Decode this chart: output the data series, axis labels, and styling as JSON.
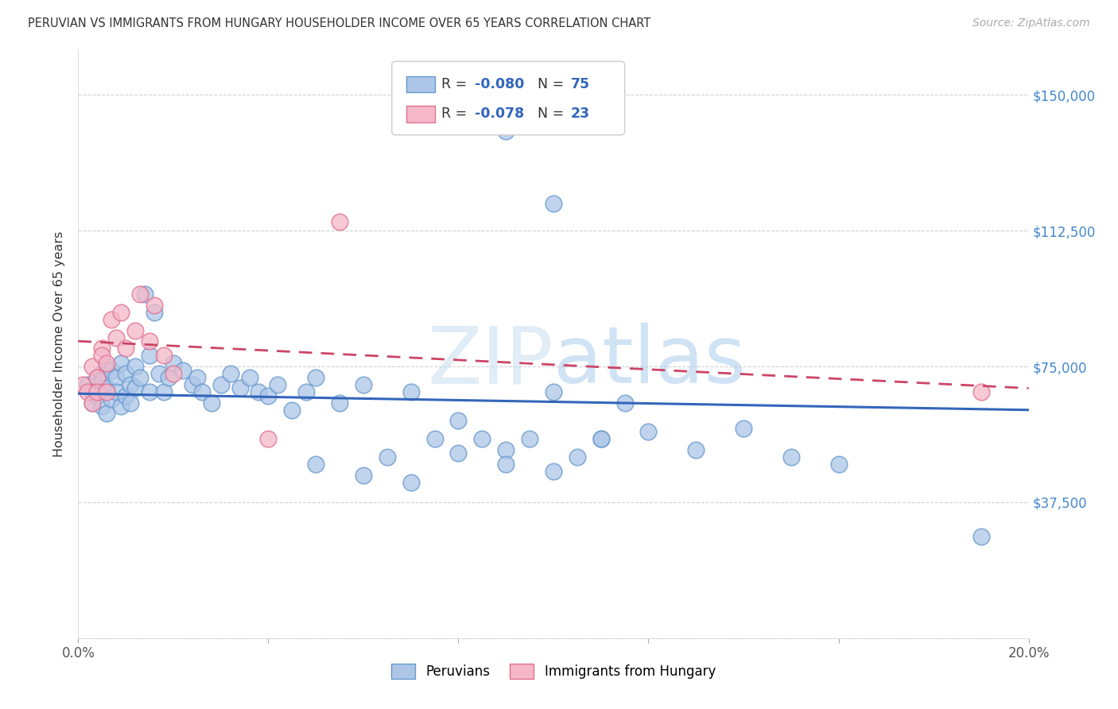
{
  "title": "PERUVIAN VS IMMIGRANTS FROM HUNGARY HOUSEHOLDER INCOME OVER 65 YEARS CORRELATION CHART",
  "source": "Source: ZipAtlas.com",
  "ylabel": "Householder Income Over 65 years",
  "legend_blue_R": "R = -0.080",
  "legend_blue_N": "N = 75",
  "legend_pink_R": "R = -0.078",
  "legend_pink_N": "N = 23",
  "legend_label_blue": "Peruvians",
  "legend_label_pink": "Immigrants from Hungary",
  "blue_scatter_color": "#adc6e8",
  "blue_edge_color": "#6699cc",
  "pink_scatter_color": "#f5b8c8",
  "pink_edge_color": "#e07090",
  "line_blue_color": "#3366bb",
  "line_pink_color": "#cc4466",
  "ytick_color": "#4488cc",
  "watermark": "ZIPatlas",
  "peruvians_x": [
    0.002,
    0.003,
    0.003,
    0.004,
    0.004,
    0.005,
    0.005,
    0.005,
    0.006,
    0.006,
    0.006,
    0.007,
    0.007,
    0.008,
    0.008,
    0.009,
    0.009,
    0.01,
    0.01,
    0.011,
    0.011,
    0.012,
    0.012,
    0.013,
    0.014,
    0.015,
    0.015,
    0.016,
    0.017,
    0.018,
    0.019,
    0.02,
    0.022,
    0.024,
    0.025,
    0.026,
    0.028,
    0.03,
    0.032,
    0.034,
    0.036,
    0.038,
    0.04,
    0.042,
    0.045,
    0.048,
    0.05,
    0.055,
    0.06,
    0.065,
    0.07,
    0.075,
    0.08,
    0.085,
    0.09,
    0.095,
    0.1,
    0.105,
    0.11,
    0.115,
    0.05,
    0.06,
    0.07,
    0.08,
    0.09,
    0.1,
    0.11,
    0.12,
    0.13,
    0.14,
    0.09,
    0.1,
    0.15,
    0.16,
    0.19
  ],
  "peruvians_y": [
    70000,
    68000,
    65000,
    72000,
    67000,
    73000,
    71000,
    64000,
    75000,
    69000,
    62000,
    74000,
    66000,
    72000,
    68000,
    76000,
    64000,
    73000,
    67000,
    70000,
    65000,
    75000,
    69000,
    72000,
    95000,
    78000,
    68000,
    90000,
    73000,
    68000,
    72000,
    76000,
    74000,
    70000,
    72000,
    68000,
    65000,
    70000,
    73000,
    69000,
    72000,
    68000,
    67000,
    70000,
    63000,
    68000,
    72000,
    65000,
    70000,
    50000,
    68000,
    55000,
    60000,
    55000,
    52000,
    55000,
    68000,
    50000,
    55000,
    65000,
    48000,
    45000,
    43000,
    51000,
    48000,
    46000,
    55000,
    57000,
    52000,
    58000,
    140000,
    120000,
    50000,
    48000,
    28000
  ],
  "hungary_x": [
    0.001,
    0.002,
    0.003,
    0.003,
    0.004,
    0.004,
    0.005,
    0.005,
    0.006,
    0.006,
    0.007,
    0.008,
    0.009,
    0.01,
    0.012,
    0.013,
    0.015,
    0.016,
    0.018,
    0.02,
    0.04,
    0.055,
    0.19
  ],
  "hungary_y": [
    70000,
    68000,
    75000,
    65000,
    72000,
    68000,
    80000,
    78000,
    76000,
    68000,
    88000,
    83000,
    90000,
    80000,
    85000,
    95000,
    82000,
    92000,
    78000,
    73000,
    55000,
    115000,
    68000
  ],
  "blue_line_x0": 0.0,
  "blue_line_y0": 67500,
  "blue_line_x1": 0.2,
  "blue_line_y1": 63000,
  "pink_line_x0": 0.0,
  "pink_line_y0": 82000,
  "pink_line_x1": 0.2,
  "pink_line_y1": 69000,
  "xlim": [
    0.0,
    0.2
  ],
  "ylim": [
    0,
    162500
  ],
  "yticks": [
    0,
    37500,
    75000,
    112500,
    150000
  ],
  "ytick_labels": [
    "",
    "$37,500",
    "$75,000",
    "$112,500",
    "$150,000"
  ]
}
